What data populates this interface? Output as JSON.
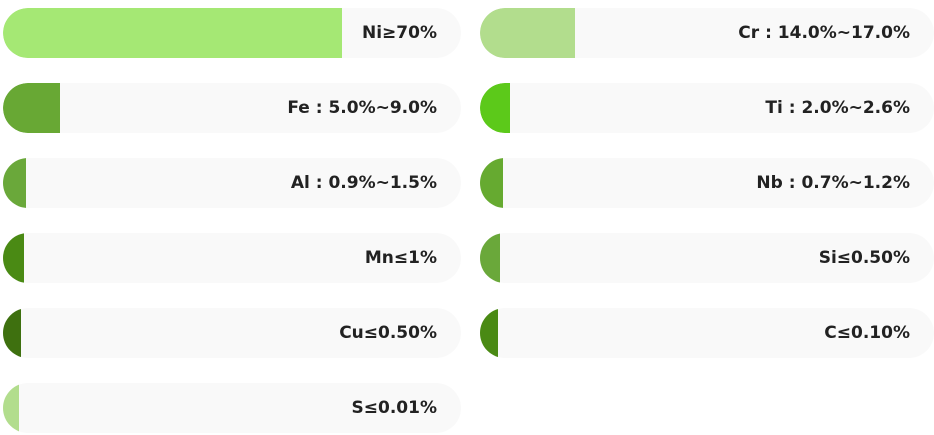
{
  "composition": [
    {
      "label": "Ni≥70%",
      "fill": 0.74,
      "color": "#a5e874"
    },
    {
      "label": "Cr : 14.0%~17.0%",
      "fill": 0.21,
      "color": "#b2dd8d"
    },
    {
      "label": "Fe : 5.0%~9.0%",
      "fill": 0.125,
      "color": "#68a834"
    },
    {
      "label": "Ti : 2.0%~2.6%",
      "fill": 0.065,
      "color": "#5cc91a"
    },
    {
      "label": "Al : 0.9%~1.5%",
      "fill": 0.05,
      "color": "#6aa83a"
    },
    {
      "label": "Nb : 0.7%~1.2%",
      "fill": 0.05,
      "color": "#66aa30"
    },
    {
      "label": "Mn≤1%",
      "fill": 0.045,
      "color": "#4a8a14"
    },
    {
      "label": "Si≤0.50%",
      "fill": 0.045,
      "color": "#6aa83a"
    },
    {
      "label": "Cu≤0.50%",
      "fill": 0.04,
      "color": "#3e700f"
    },
    {
      "label": "C≤0.10%",
      "fill": 0.04,
      "color": "#4a8a14"
    },
    {
      "label": "S≤0.01%",
      "fill": 0.035,
      "color": "#b2dd8d"
    }
  ]
}
